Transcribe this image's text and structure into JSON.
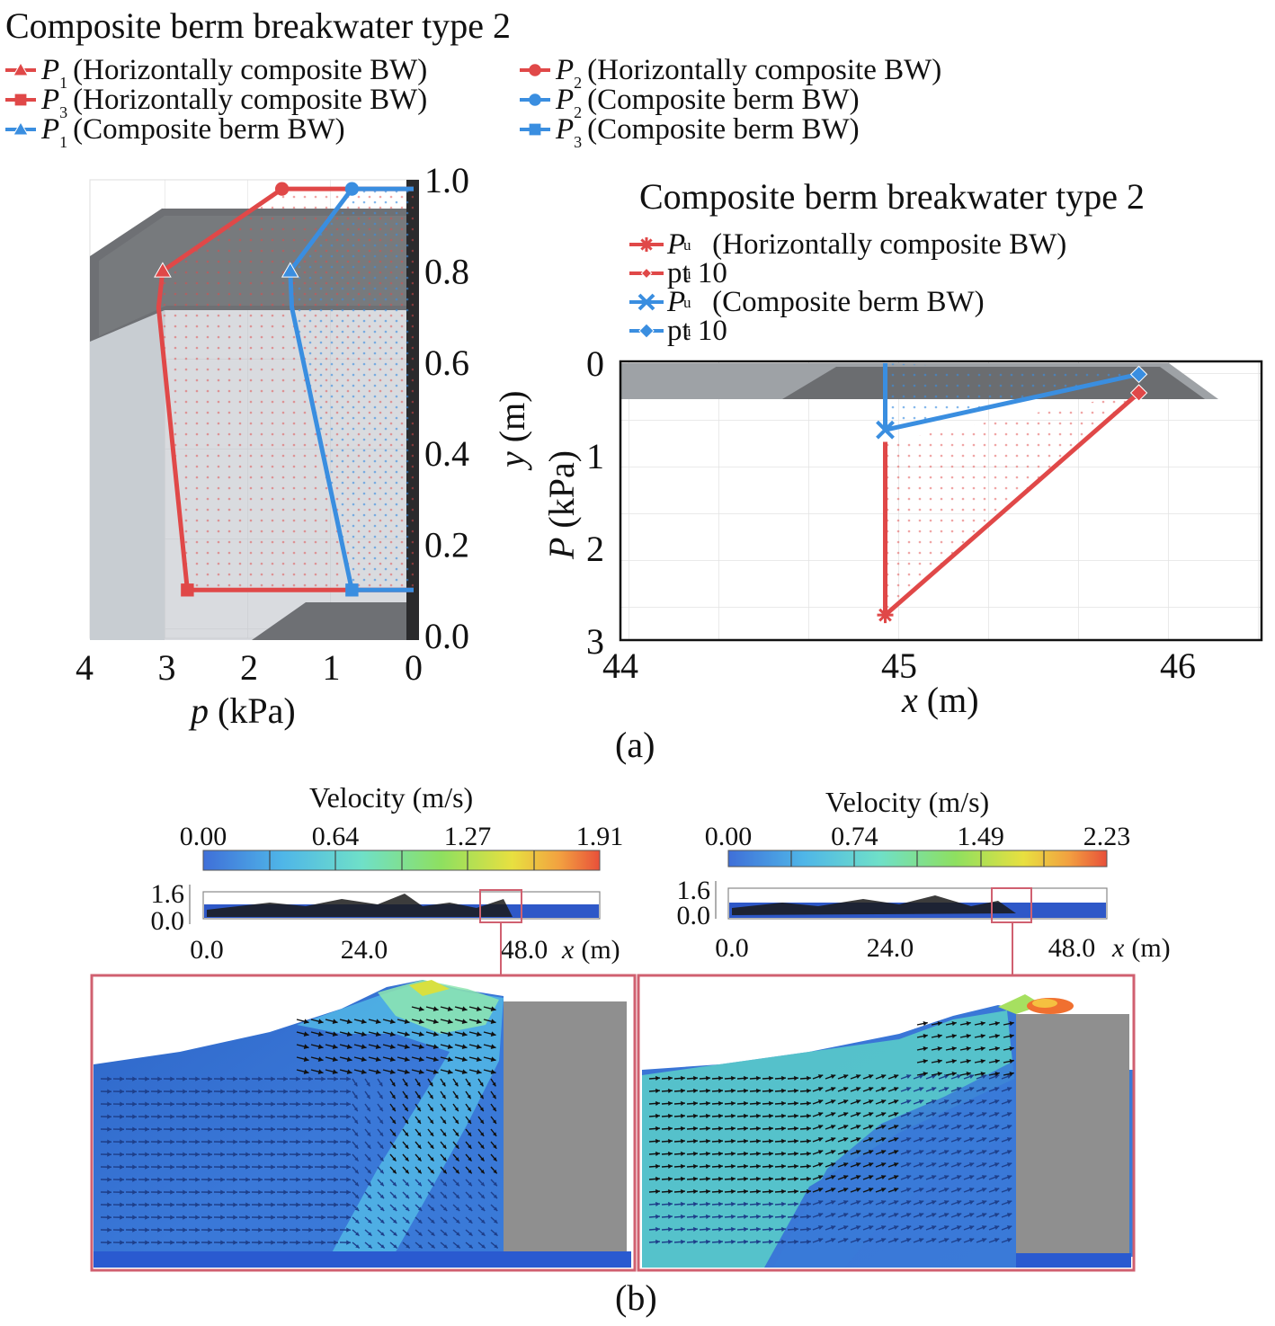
{
  "panel_a_label": "(a)",
  "panel_b_label": "(b)",
  "colors": {
    "red": "#e04848",
    "blue": "#3a8ee0",
    "panel_frame": "#d06070"
  },
  "chart_data": [
    {
      "type": "line",
      "title": "Composite berm breakwater type 2",
      "xlabel_var": "p",
      "xlabel_unit": "(kPa)",
      "ylabel_var": "y",
      "ylabel_unit": "(m)",
      "xlim": [
        4,
        0
      ],
      "ylim": [
        0,
        1
      ],
      "x_ticks": [
        "4",
        "3",
        "2",
        "1",
        "0"
      ],
      "y_ticks": [
        "0.0",
        "0.2",
        "0.4",
        "0.6",
        "0.8",
        "1.0"
      ],
      "legend": [
        {
          "sym": "P",
          "sub": "1",
          "text": "(Horizontally composite BW)",
          "color": "#e04848",
          "marker": "triangle"
        },
        {
          "sym": "P",
          "sub": "2",
          "text": "(Horizontally composite BW)",
          "color": "#e04848",
          "marker": "circle"
        },
        {
          "sym": "P",
          "sub": "3",
          "text": "(Horizontally composite BW)",
          "color": "#e04848",
          "marker": "square"
        },
        {
          "sym": "P",
          "sub": "1",
          "text": "(Composite berm BW)",
          "color": "#3a8ee0",
          "marker": "triangle"
        },
        {
          "sym": "P",
          "sub": "2",
          "text": "(Composite berm BW)",
          "color": "#3a8ee0",
          "marker": "circle"
        },
        {
          "sym": "P",
          "sub": "3",
          "text": "(Composite berm BW)",
          "color": "#3a8ee0",
          "marker": "square"
        }
      ],
      "series": [
        {
          "color": "#e04848",
          "x": [
            0,
            1.6,
            3.05,
            3.1,
            2.75,
            0
          ],
          "y": [
            0.98,
            0.98,
            0.8,
            0.72,
            0.1,
            0.1
          ]
        },
        {
          "color": "#3a8ee0",
          "x": [
            0,
            0.75,
            1.5,
            1.48,
            0.75,
            0
          ],
          "y": [
            0.98,
            0.98,
            0.8,
            0.72,
            0.1,
            0.1
          ]
        }
      ],
      "markers": [
        {
          "x": 1.6,
          "y": 0.98,
          "color": "#e04848",
          "marker": "circle"
        },
        {
          "x": 3.05,
          "y": 0.8,
          "color": "#e04848",
          "marker": "triangle"
        },
        {
          "x": 2.75,
          "y": 0.1,
          "color": "#e04848",
          "marker": "square"
        },
        {
          "x": 0.75,
          "y": 0.98,
          "color": "#3a8ee0",
          "marker": "circle"
        },
        {
          "x": 1.5,
          "y": 0.8,
          "color": "#3a8ee0",
          "marker": "triangle"
        },
        {
          "x": 0.75,
          "y": 0.1,
          "color": "#3a8ee0",
          "marker": "square"
        }
      ]
    },
    {
      "type": "line",
      "title": "Composite berm breakwater type 2",
      "xlabel_var": "x",
      "xlabel_unit": "(m)",
      "ylabel_var": "P",
      "ylabel_unit": "(kPa)",
      "xlim": [
        44,
        46.3
      ],
      "ylim": [
        0,
        3
      ],
      "x_ticks": [
        "44",
        "45",
        "46"
      ],
      "y_ticks": [
        "0",
        "1",
        "2",
        "3"
      ],
      "legend": [
        {
          "sym": "P",
          "sub": "u",
          "text": "(Horizontally composite BW)",
          "color": "#e04848",
          "marker": "asterisk"
        },
        {
          "sym": "",
          "sub": "u",
          "text": "pt 10",
          "color": "#e04848",
          "marker": "diamond-small"
        },
        {
          "sym": "P",
          "sub": "u",
          "text": "(Composite berm BW)",
          "color": "#3a8ee0",
          "marker": "xmark"
        },
        {
          "sym": "",
          "sub": "u",
          "text": "pt 10",
          "color": "#3a8ee0",
          "marker": "diamond"
        }
      ],
      "series": [
        {
          "color": "#e04848",
          "x": [
            44.95,
            44.95,
            45.86
          ],
          "y": [
            0.85,
            2.72,
            0.32
          ]
        },
        {
          "color": "#3a8ee0",
          "x": [
            44.95,
            44.95,
            45.86
          ],
          "y": [
            0.0,
            0.72,
            0.12
          ]
        }
      ],
      "markers": [
        {
          "x": 44.95,
          "y": 2.72,
          "color": "#e04848",
          "marker": "asterisk"
        },
        {
          "x": 45.86,
          "y": 0.32,
          "color": "#e04848",
          "marker": "diamond"
        },
        {
          "x": 44.95,
          "y": 0.72,
          "color": "#3a8ee0",
          "marker": "xmark"
        },
        {
          "x": 45.86,
          "y": 0.12,
          "color": "#3a8ee0",
          "marker": "diamond"
        }
      ]
    },
    {
      "type": "heatmap",
      "title": "Velocity (m/s)",
      "colorbar_ticks": [
        "0.00",
        "0.64",
        "1.27",
        "1.91"
      ],
      "inset_y_ticks": [
        "1.6",
        "0.0"
      ],
      "inset_x_ticks": [
        "0.0",
        "24.0",
        "48.0"
      ],
      "inset_xlabel_var": "x",
      "inset_xlabel_unit": "(m)"
    },
    {
      "type": "heatmap",
      "title": "Velocity (m/s)",
      "colorbar_ticks": [
        "0.00",
        "0.74",
        "1.49",
        "2.23"
      ],
      "inset_y_ticks": [
        "1.6",
        "0.0"
      ],
      "inset_x_ticks": [
        "0.0",
        "24.0",
        "48.0"
      ],
      "inset_xlabel_var": "x",
      "inset_xlabel_unit": "(m)"
    }
  ]
}
